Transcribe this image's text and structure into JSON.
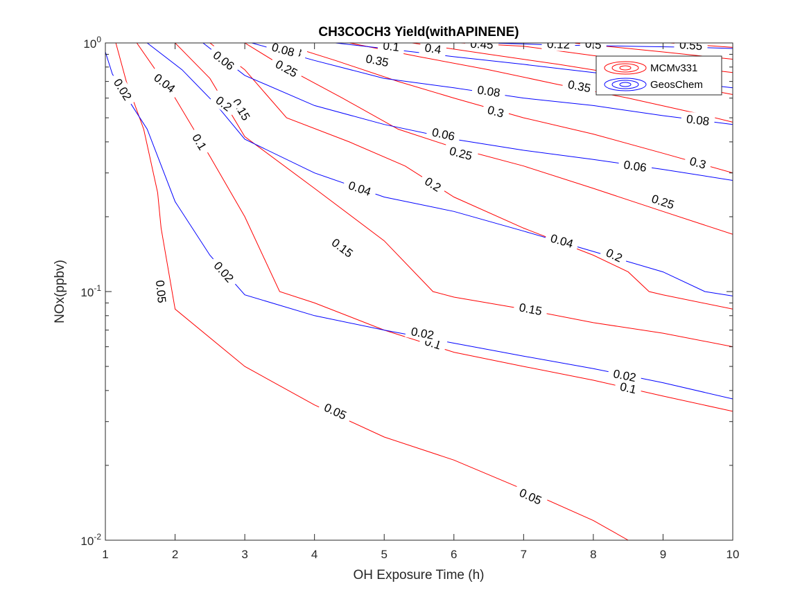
{
  "chart_data": {
    "type": "line",
    "subtype": "contour",
    "title": "CH3COCH3 Yield(withAPINENE)",
    "xlabel": "OH Exposure Time (h)",
    "ylabel": "NOx(ppbv)",
    "xlim": [
      1,
      10
    ],
    "ylim": [
      0.01,
      1
    ],
    "yscale": "log",
    "grid": false,
    "legend_position": "top-right",
    "x_ticks": [
      1,
      2,
      3,
      4,
      5,
      6,
      7,
      8,
      9,
      10
    ],
    "y_ticks": [
      {
        "value": 0.01,
        "base": "10",
        "exp": "-2"
      },
      {
        "value": 0.1,
        "base": "10",
        "exp": "-1"
      },
      {
        "value": 1,
        "base": "10",
        "exp": "0"
      }
    ],
    "legend": [
      {
        "name": "MCMv331",
        "color": "#ff0000"
      },
      {
        "name": "GeosChem",
        "color": "#0000ff"
      }
    ],
    "series": [
      {
        "model": "MCMv331",
        "color": "#ff0000",
        "level": "0.05",
        "points": [
          [
            1.15,
            1
          ],
          [
            1.3,
            0.7
          ],
          [
            1.55,
            0.45
          ],
          [
            1.75,
            0.25
          ],
          [
            1.8,
            0.18
          ],
          [
            2,
            0.085
          ],
          [
            3,
            0.05
          ],
          [
            4,
            0.035
          ],
          [
            5,
            0.026
          ],
          [
            6,
            0.021
          ],
          [
            7,
            0.016
          ],
          [
            8,
            0.012
          ],
          [
            8.5,
            0.01
          ]
        ],
        "labels": [
          [
            1.8,
            0.1,
            "0.05"
          ],
          [
            4.3,
            0.033,
            "0.05"
          ],
          [
            7.1,
            0.015,
            "0.05"
          ]
        ]
      },
      {
        "model": "MCMv331",
        "color": "#ff0000",
        "level": "0.1",
        "points": [
          [
            1.45,
            1
          ],
          [
            2,
            0.6
          ],
          [
            2.5,
            0.35
          ],
          [
            3,
            0.2
          ],
          [
            3.5,
            0.1
          ],
          [
            4,
            0.09
          ],
          [
            5,
            0.07
          ],
          [
            6,
            0.057
          ],
          [
            7,
            0.05
          ],
          [
            8,
            0.044
          ],
          [
            9,
            0.038
          ],
          [
            10,
            0.033
          ]
        ],
        "labels": [
          [
            2.35,
            0.4,
            "0.1"
          ],
          [
            5.7,
            0.062,
            "0.1"
          ],
          [
            8.5,
            0.041,
            "0.1"
          ]
        ]
      },
      {
        "model": "MCMv331",
        "color": "#ff0000",
        "level": "0.15",
        "points": [
          [
            2,
            1
          ],
          [
            2.5,
            0.72
          ],
          [
            3,
            0.42
          ],
          [
            4,
            0.26
          ],
          [
            5,
            0.16
          ],
          [
            5.7,
            0.1
          ],
          [
            6,
            0.095
          ],
          [
            7,
            0.085
          ],
          [
            8,
            0.075
          ],
          [
            9,
            0.068
          ],
          [
            10,
            0.06
          ]
        ],
        "labels": [
          [
            2.95,
            0.54,
            "0.15"
          ],
          [
            4.4,
            0.15,
            "0.15"
          ],
          [
            7.1,
            0.085,
            "0.15"
          ]
        ]
      },
      {
        "model": "MCMv331",
        "color": "#ff0000",
        "level": "0.2",
        "points": [
          [
            2.5,
            1
          ],
          [
            3,
            0.78
          ],
          [
            3.6,
            0.5
          ],
          [
            4.5,
            0.4
          ],
          [
            5.3,
            0.32
          ],
          [
            6,
            0.24
          ],
          [
            7,
            0.18
          ],
          [
            8,
            0.14
          ],
          [
            8.5,
            0.12
          ],
          [
            8.8,
            0.1
          ],
          [
            9,
            0.097
          ],
          [
            10,
            0.085
          ]
        ],
        "labels": [
          [
            2.7,
            0.57,
            "0.2"
          ],
          [
            5.7,
            0.27,
            "0.2"
          ],
          [
            8.3,
            0.14,
            "0.2"
          ]
        ]
      },
      {
        "model": "MCMv331",
        "color": "#ff0000",
        "level": "0.25",
        "points": [
          [
            3,
            1
          ],
          [
            3.5,
            0.82
          ],
          [
            4.4,
            0.6
          ],
          [
            5.2,
            0.45
          ],
          [
            6,
            0.38
          ],
          [
            7,
            0.32
          ],
          [
            8,
            0.26
          ],
          [
            9,
            0.21
          ],
          [
            10,
            0.17
          ]
        ],
        "labels": [
          [
            3.6,
            0.79,
            "0.25"
          ],
          [
            6.1,
            0.36,
            "0.25"
          ],
          [
            9,
            0.23,
            "0.25"
          ]
        ]
      },
      {
        "model": "MCMv331",
        "color": "#ff0000",
        "level": "0.3",
        "points": [
          [
            3.5,
            1
          ],
          [
            4.3,
            0.85
          ],
          [
            5.2,
            0.7
          ],
          [
            6,
            0.6
          ],
          [
            7,
            0.5
          ],
          [
            8,
            0.43
          ],
          [
            9,
            0.36
          ],
          [
            10,
            0.3
          ]
        ],
        "labels": [
          [
            3.7,
            0.93,
            "0.3"
          ],
          [
            6.6,
            0.53,
            "0.3"
          ],
          [
            9.5,
            0.33,
            "0.3"
          ]
        ]
      },
      {
        "model": "MCMv331",
        "color": "#ff0000",
        "level": "0.35",
        "points": [
          [
            4.5,
            1
          ],
          [
            5.5,
            0.88
          ],
          [
            6.5,
            0.78
          ],
          [
            7.5,
            0.68
          ],
          [
            8.5,
            0.6
          ],
          [
            9.5,
            0.52
          ],
          [
            10,
            0.48
          ]
        ],
        "labels": [
          [
            4.9,
            0.85,
            "0.35"
          ],
          [
            7.8,
            0.67,
            "0.35"
          ]
        ]
      },
      {
        "model": "MCMv331",
        "color": "#ff0000",
        "level": "0.4",
        "points": [
          [
            5.4,
            1
          ],
          [
            6.5,
            0.9
          ],
          [
            7.5,
            0.82
          ],
          [
            8.5,
            0.74
          ],
          [
            9.5,
            0.66
          ],
          [
            10,
            0.62
          ]
        ],
        "labels": [
          [
            5.7,
            0.95,
            "0.4"
          ]
        ]
      },
      {
        "model": "MCMv331",
        "color": "#ff0000",
        "level": "0.45",
        "points": [
          [
            6.1,
            1
          ],
          [
            7,
            0.97
          ],
          [
            8,
            0.89
          ],
          [
            9,
            0.82
          ],
          [
            10,
            0.76
          ]
        ],
        "labels": [
          [
            6.4,
            0.99,
            "0.45"
          ]
        ]
      },
      {
        "model": "MCMv331",
        "color": "#ff0000",
        "level": "0.5",
        "points": [
          [
            7.7,
            1
          ],
          [
            9,
            0.92
          ],
          [
            10,
            0.86
          ]
        ],
        "labels": [
          [
            8.0,
            0.99,
            "0.5"
          ]
        ]
      },
      {
        "model": "MCMv331",
        "color": "#ff0000",
        "level": "0.55",
        "points": [
          [
            9.1,
            1
          ],
          [
            10,
            0.96
          ]
        ],
        "labels": [
          [
            9.4,
            0.98,
            "0.55"
          ]
        ]
      },
      {
        "model": "GeosChem",
        "color": "#0000ff",
        "level": "0.02",
        "points": [
          [
            1,
            0.92
          ],
          [
            1.1,
            0.75
          ],
          [
            1.4,
            0.55
          ],
          [
            1.6,
            0.45
          ],
          [
            2,
            0.23
          ],
          [
            2.5,
            0.14
          ],
          [
            3,
            0.097
          ],
          [
            4,
            0.08
          ],
          [
            5,
            0.07
          ],
          [
            6,
            0.062
          ],
          [
            7,
            0.055
          ],
          [
            8,
            0.049
          ],
          [
            9,
            0.043
          ],
          [
            10,
            0.037
          ]
        ],
        "labels": [
          [
            1.25,
            0.65,
            "0.02"
          ],
          [
            2.7,
            0.12,
            "0.02"
          ],
          [
            5.55,
            0.068,
            "0.02"
          ],
          [
            8.45,
            0.046,
            "0.02"
          ]
        ]
      },
      {
        "model": "GeosChem",
        "color": "#0000ff",
        "level": "0.04",
        "points": [
          [
            1.6,
            1
          ],
          [
            2.1,
            0.78
          ],
          [
            2.6,
            0.56
          ],
          [
            3,
            0.41
          ],
          [
            4,
            0.3
          ],
          [
            5,
            0.24
          ],
          [
            6,
            0.21
          ],
          [
            7,
            0.175
          ],
          [
            8,
            0.145
          ],
          [
            9,
            0.12
          ],
          [
            9.6,
            0.1
          ],
          [
            10,
            0.096
          ]
        ],
        "labels": [
          [
            1.85,
            0.69,
            "0.04"
          ],
          [
            4.65,
            0.26,
            "0.04"
          ],
          [
            7.55,
            0.16,
            "0.04"
          ]
        ]
      },
      {
        "model": "GeosChem",
        "color": "#0000ff",
        "level": "0.06",
        "points": [
          [
            2.4,
            1
          ],
          [
            3,
            0.74
          ],
          [
            4,
            0.56
          ],
          [
            5,
            0.47
          ],
          [
            6,
            0.41
          ],
          [
            7,
            0.37
          ],
          [
            8,
            0.34
          ],
          [
            9,
            0.31
          ],
          [
            10,
            0.28
          ]
        ],
        "labels": [
          [
            2.7,
            0.85,
            "0.06"
          ],
          [
            5.85,
            0.43,
            "0.06"
          ],
          [
            8.6,
            0.32,
            "0.06"
          ]
        ]
      },
      {
        "model": "GeosChem",
        "color": "#0000ff",
        "level": "0.08",
        "points": [
          [
            3.1,
            1
          ],
          [
            4,
            0.85
          ],
          [
            5,
            0.72
          ],
          [
            6,
            0.66
          ],
          [
            7,
            0.6
          ],
          [
            8,
            0.56
          ],
          [
            9,
            0.51
          ],
          [
            10,
            0.47
          ]
        ],
        "labels": [
          [
            3.55,
            0.94,
            "0.08"
          ],
          [
            6.5,
            0.64,
            "0.08"
          ],
          [
            9.5,
            0.49,
            "0.08"
          ]
        ]
      },
      {
        "model": "GeosChem",
        "color": "#0000ff",
        "level": "0.1",
        "points": [
          [
            4.3,
            1
          ],
          [
            5,
            0.95
          ],
          [
            6,
            0.88
          ],
          [
            7,
            0.82
          ],
          [
            8,
            0.76
          ],
          [
            9,
            0.71
          ],
          [
            10,
            0.66
          ]
        ],
        "labels": [
          [
            5.1,
            0.97,
            "0.1"
          ]
        ]
      },
      {
        "model": "GeosChem",
        "color": "#0000ff",
        "level": "0.12",
        "points": [
          [
            6.5,
            1
          ],
          [
            7.5,
            0.98
          ],
          [
            8.5,
            0.97
          ],
          [
            9.5,
            0.96
          ],
          [
            10,
            0.95
          ]
        ],
        "labels": [
          [
            7.5,
            0.99,
            "0.12"
          ]
        ]
      }
    ]
  }
}
